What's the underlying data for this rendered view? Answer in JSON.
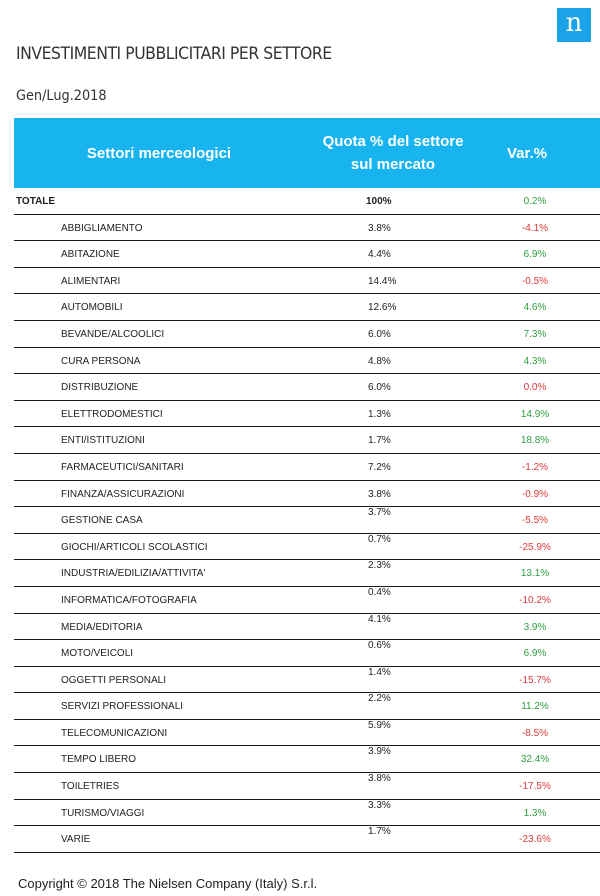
{
  "logo": {
    "letter": "n"
  },
  "title": "INVESTIMENTI PUBBLICITARI PER SETTORE",
  "subtitle": "Gen/Lug.2018",
  "table": {
    "headers": {
      "sector": "Settori merceologici",
      "share": "Quota % del settore sul mercato",
      "var": "Var.%"
    },
    "total": {
      "name": "TOTALE",
      "share": "100%",
      "var": "0.2%"
    },
    "rows": [
      {
        "name": "ABBIGLIAMENTO",
        "share": "3.8%",
        "var": "-4.1%",
        "sign": "neg"
      },
      {
        "name": "ABITAZIONE",
        "share": "4.4%",
        "var": "6.9%",
        "sign": "pos"
      },
      {
        "name": "ALIMENTARI",
        "share": "14.4%",
        "var": "-0.5%",
        "sign": "neg"
      },
      {
        "name": "AUTOMOBILI",
        "share": "12.6%",
        "var": "4.6%",
        "sign": "pos"
      },
      {
        "name": "BEVANDE/ALCOOLICI",
        "share": "6.0%",
        "var": "7.3%",
        "sign": "pos"
      },
      {
        "name": "CURA PERSONA",
        "share": "4.8%",
        "var": "4.3%",
        "sign": "pos"
      },
      {
        "name": "DISTRIBUZIONE",
        "share": "6.0%",
        "var": "0.0%",
        "sign": "neg"
      },
      {
        "name": "ELETTRODOMESTICI",
        "share": "1.3%",
        "var": "14.9%",
        "sign": "pos"
      },
      {
        "name": "ENTI/ISTITUZIONI",
        "share": "1.7%",
        "var": "18.8%",
        "sign": "pos"
      },
      {
        "name": "FARMACEUTICI/SANITARI",
        "share": "7.2%",
        "var": "-1.2%",
        "sign": "neg"
      },
      {
        "name": "FINANZA/ASSICURAZIONI",
        "share": "3.8%",
        "var": "-0.9%",
        "sign": "neg"
      },
      {
        "name": "GESTIONE CASA",
        "share": "3.7%",
        "var": "-5.5%",
        "sign": "neg",
        "shift": true
      },
      {
        "name": "GIOCHI/ARTICOLI SCOLASTICI",
        "share": "0.7%",
        "var": "-25.9%",
        "sign": "neg",
        "shift": true
      },
      {
        "name": "INDUSTRIA/EDILIZIA/ATTIVITA'",
        "share": "2.3%",
        "var": "13.1%",
        "sign": "pos",
        "shift": true
      },
      {
        "name": "INFORMATICA/FOTOGRAFIA",
        "share": "0.4%",
        "var": "-10.2%",
        "sign": "neg",
        "shift": true
      },
      {
        "name": "MEDIA/EDITORIA",
        "share": "4.1%",
        "var": "3.9%",
        "sign": "pos",
        "shift": true
      },
      {
        "name": "MOTO/VEICOLI",
        "share": "0.6%",
        "var": "6.9%",
        "sign": "pos",
        "shift": true
      },
      {
        "name": "OGGETTI PERSONALI",
        "share": "1.4%",
        "var": "-15.7%",
        "sign": "neg",
        "shift": true
      },
      {
        "name": "SERVIZI PROFESSIONALI",
        "share": "2.2%",
        "var": "11.2%",
        "sign": "pos",
        "shift": true
      },
      {
        "name": "TELECOMUNICAZIONI",
        "share": "5.9%",
        "var": "-8.5%",
        "sign": "neg",
        "shift": true
      },
      {
        "name": "TEMPO LIBERO",
        "share": "3.9%",
        "var": "32.4%",
        "sign": "pos",
        "shift": true
      },
      {
        "name": "TOILETRIES",
        "share": "3.8%",
        "var": "-17.5%",
        "sign": "neg",
        "shift": true
      },
      {
        "name": "TURISMO/VIAGGI",
        "share": "3.3%",
        "var": "1.3%",
        "sign": "pos",
        "shift": true
      },
      {
        "name": "VARIE",
        "share": "1.7%",
        "var": "-23.6%",
        "sign": "neg",
        "shift": true
      }
    ]
  },
  "colors": {
    "header_bg": "#18b4ef",
    "positive": "#2e9e3e",
    "negative": "#e03a3a",
    "logo_bg": "#1aa3e8"
  },
  "footer": "Copyright © 2018 The Nielsen Company (Italy) S.r.l."
}
